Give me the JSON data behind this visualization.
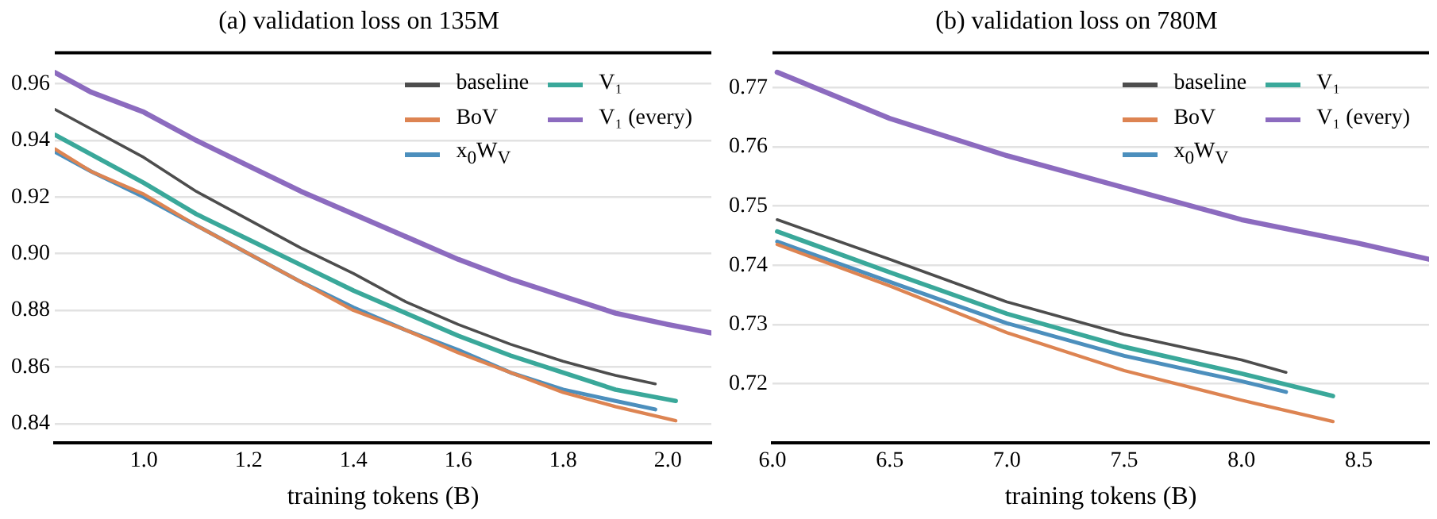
{
  "chart_data": [
    {
      "type": "line",
      "title": "(a) validation loss on 135M",
      "xlabel": "training tokens (B)",
      "xlim": [
        0.83,
        2.083
      ],
      "ylim": [
        0.8332,
        0.971
      ],
      "xticks": [
        {
          "value": 1.0,
          "label": "1.0"
        },
        1.2,
        1.4,
        1.6,
        1.8,
        {
          "value": 2.0,
          "label": "2.0"
        }
      ],
      "yticks": [
        0.84,
        0.86,
        0.88,
        {
          "value": 0.9,
          "label": "0.90"
        },
        0.92,
        0.94,
        0.96
      ],
      "grid": "y",
      "legend": "top right",
      "line_style": "solid",
      "marker": "none",
      "series": [
        {
          "name": "baseline",
          "color": "#4d4d4d",
          "x": [
            0.83,
            0.9,
            1.0,
            1.1,
            1.2,
            1.3,
            1.4,
            1.5,
            1.6,
            1.7,
            1.8,
            1.9,
            1.976
          ],
          "values": [
            0.951,
            0.944,
            0.934,
            0.922,
            0.912,
            0.902,
            0.893,
            0.883,
            0.875,
            0.868,
            0.862,
            0.857,
            0.854
          ]
        },
        {
          "name": "BoV",
          "color": "#dd8452",
          "x": [
            0.83,
            0.9,
            1.0,
            1.1,
            1.2,
            1.3,
            1.4,
            1.5,
            1.6,
            1.7,
            1.8,
            1.9,
            2.015
          ],
          "values": [
            0.937,
            0.929,
            0.921,
            0.91,
            0.9,
            0.89,
            0.88,
            0.873,
            0.865,
            0.858,
            0.851,
            0.846,
            0.841
          ]
        },
        {
          "name": "x$_{0}$W$_{V}$",
          "color": "#4c8fbd",
          "x": [
            0.83,
            0.9,
            1.0,
            1.1,
            1.2,
            1.3,
            1.4,
            1.5,
            1.6,
            1.7,
            1.8,
            1.9,
            1.976
          ],
          "values": [
            0.936,
            0.929,
            0.92,
            0.91,
            0.9,
            0.89,
            0.881,
            0.873,
            0.866,
            0.858,
            0.852,
            0.848,
            0.845
          ]
        },
        {
          "name": "V₁",
          "color": "#3aa89a",
          "x": [
            0.83,
            0.9,
            1.0,
            1.1,
            1.2,
            1.3,
            1.4,
            1.5,
            1.6,
            1.7,
            1.8,
            1.9,
            2.015
          ],
          "values": [
            0.942,
            0.935,
            0.925,
            0.914,
            0.905,
            0.896,
            0.887,
            0.879,
            0.871,
            0.864,
            0.858,
            0.852,
            0.848
          ]
        },
        {
          "name": "V₁ (every)",
          "color": "#8c6bbf",
          "x": [
            0.83,
            0.9,
            1.0,
            1.1,
            1.2,
            1.3,
            1.4,
            1.5,
            1.6,
            1.7,
            1.8,
            1.9,
            2.0,
            2.083
          ],
          "values": [
            0.964,
            0.957,
            0.95,
            0.94,
            0.931,
            0.922,
            0.914,
            0.906,
            0.898,
            0.891,
            0.885,
            0.879,
            0.875,
            0.872
          ]
        }
      ]
    },
    {
      "type": "line",
      "title": "(b) validation loss on 780M",
      "xlabel": "training tokens (B)",
      "xlim": [
        6.0,
        8.8
      ],
      "ylim": [
        0.71,
        0.7759
      ],
      "xticks": [
        {
          "value": 6.0,
          "label": "6.0"
        },
        6.5,
        {
          "value": 7.0,
          "label": "7.0"
        },
        7.5,
        {
          "value": 8.0,
          "label": "8.0"
        },
        8.5
      ],
      "yticks": [
        0.72,
        0.73,
        0.74,
        0.75,
        0.76,
        0.77
      ],
      "grid": "y",
      "legend": "top right",
      "line_style": "solid",
      "marker": "none",
      "series": [
        {
          "name": "baseline",
          "color": "#4d4d4d",
          "x": [
            6.02,
            6.5,
            7.0,
            7.5,
            8.0,
            8.19
          ],
          "values": [
            0.7477,
            0.741,
            0.7338,
            0.7283,
            0.724,
            0.7219
          ]
        },
        {
          "name": "BoV",
          "color": "#dd8452",
          "x": [
            6.02,
            6.5,
            7.0,
            7.5,
            8.0,
            8.39
          ],
          "values": [
            0.7435,
            0.7365,
            0.7286,
            0.7222,
            0.7172,
            0.7136
          ]
        },
        {
          "name": "x$_{0}$W$_{V}$",
          "color": "#4c8fbd",
          "x": [
            6.02,
            6.5,
            7.0,
            7.5,
            8.0,
            8.19
          ],
          "values": [
            0.744,
            0.7372,
            0.7302,
            0.7247,
            0.7204,
            0.7186
          ]
        },
        {
          "name": "V₁",
          "color": "#3aa89a",
          "x": [
            6.02,
            6.5,
            7.0,
            7.5,
            8.0,
            8.39
          ],
          "values": [
            0.7457,
            0.7388,
            0.7318,
            0.7262,
            0.7217,
            0.7179
          ]
        },
        {
          "name": "V₁ (every)",
          "color": "#8c6bbf",
          "x": [
            6.02,
            6.5,
            7.0,
            7.5,
            8.0,
            8.5,
            8.8
          ],
          "values": [
            0.7726,
            0.7648,
            0.7585,
            0.7531,
            0.7477,
            0.7437,
            0.741
          ]
        }
      ]
    }
  ]
}
